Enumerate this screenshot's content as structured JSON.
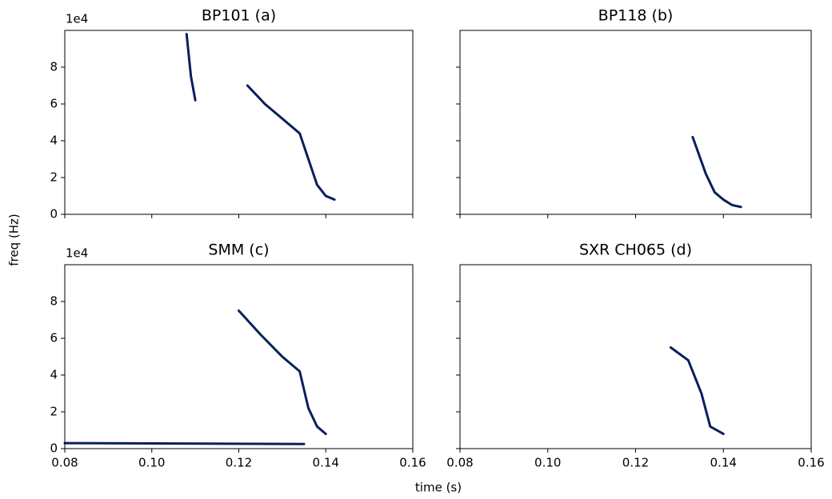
{
  "xlabel": "time (s)",
  "ylabel": "freq (Hz)",
  "chart_data": [
    {
      "type": "spectrogram",
      "title": "BP101 (a)",
      "y_offset_label": "1e4",
      "xlim": [
        0.08,
        0.16
      ],
      "ylim": [
        0,
        100000
      ],
      "xticks": [
        0.08,
        0.1,
        0.12,
        0.14,
        0.16
      ],
      "xtick_labels": false,
      "yticks": [
        0,
        {
          "value": 20000,
          "label": "2"
        },
        {
          "value": 40000,
          "label": "4"
        },
        {
          "value": 60000,
          "label": "6"
        },
        {
          "value": 80000,
          "label": "8"
        }
      ],
      "ytick_labels": true,
      "ridges": [
        {
          "color": "#0a1f5c",
          "x": [
            0.108,
            0.109,
            0.11
          ],
          "values": [
            98000,
            75000,
            62000
          ]
        },
        {
          "color": "#0a1f5c",
          "x": [
            0.122,
            0.126,
            0.13,
            0.134,
            0.136,
            0.138,
            0.14,
            0.142
          ],
          "values": [
            70000,
            60000,
            52000,
            44000,
            30000,
            16000,
            10000,
            8000
          ]
        }
      ]
    },
    {
      "type": "spectrogram",
      "title": "BP118 (b)",
      "xlim": [
        0.08,
        0.16
      ],
      "ylim": [
        0,
        100000
      ],
      "xticks": [
        0.08,
        0.1,
        0.12,
        0.14,
        0.16
      ],
      "xtick_labels": false,
      "yticks": [
        0,
        20000,
        40000,
        60000,
        80000
      ],
      "ytick_labels": false,
      "ridges": [
        {
          "color": "#0a1f5c",
          "x": [
            0.133,
            0.136,
            0.138,
            0.14,
            0.142,
            0.144
          ],
          "values": [
            42000,
            22000,
            12000,
            8000,
            5000,
            4000
          ]
        }
      ]
    },
    {
      "type": "spectrogram",
      "title": "SMM (c)",
      "y_offset_label": "1e4",
      "xlim": [
        0.08,
        0.16
      ],
      "ylim": [
        0,
        100000
      ],
      "xticks": [
        0.08,
        {
          "value": 0.1,
          "label": "0.10"
        },
        0.12,
        0.14,
        0.16
      ],
      "xtick_labels": true,
      "yticks": [
        0,
        {
          "value": 20000,
          "label": "2"
        },
        {
          "value": 40000,
          "label": "4"
        },
        {
          "value": 60000,
          "label": "6"
        },
        {
          "value": 80000,
          "label": "8"
        }
      ],
      "ytick_labels": true,
      "ridges": [
        {
          "color": "#0a1f5c",
          "x": [
            0.12,
            0.125,
            0.13,
            0.134,
            0.136,
            0.138,
            0.14
          ],
          "values": [
            75000,
            62000,
            50000,
            42000,
            22000,
            12000,
            8000
          ]
        },
        {
          "color": "#0a1f5c",
          "x": [
            0.08,
            0.135
          ],
          "values": [
            3000,
            2500
          ]
        }
      ]
    },
    {
      "type": "spectrogram",
      "title": "SXR CH065 (d)",
      "xlim": [
        0.08,
        0.16
      ],
      "ylim": [
        0,
        100000
      ],
      "xticks": [
        0.08,
        {
          "value": 0.1,
          "label": "0.10"
        },
        0.12,
        0.14,
        0.16
      ],
      "xtick_labels": true,
      "yticks": [
        0,
        20000,
        40000,
        60000,
        80000
      ],
      "ytick_labels": false,
      "ridges": [
        {
          "color": "#0a1f5c",
          "x": [
            0.128,
            0.132,
            0.135,
            0.137,
            0.14
          ],
          "values": [
            55000,
            48000,
            30000,
            12000,
            8000
          ]
        }
      ]
    }
  ]
}
